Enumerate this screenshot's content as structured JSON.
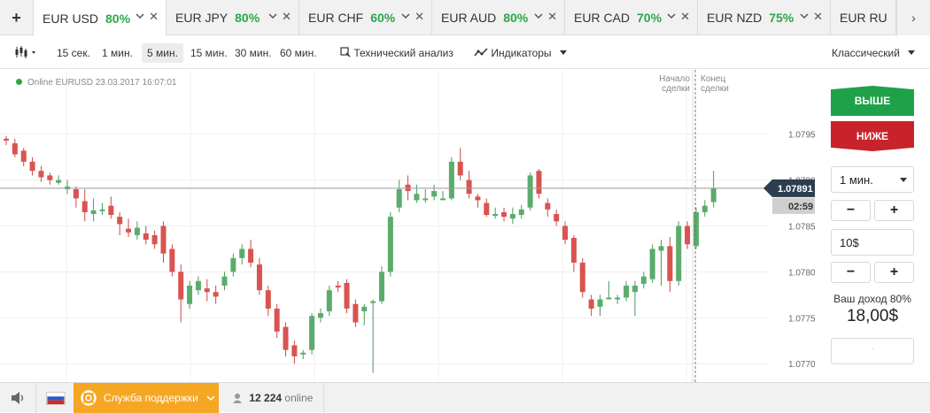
{
  "tabs": {
    "add_label": "+",
    "items": [
      {
        "pair": "EUR USD",
        "pct": "80%"
      },
      {
        "pair": "EUR JPY",
        "pct": "80%"
      },
      {
        "pair": "EUR CHF",
        "pct": "60%"
      },
      {
        "pair": "EUR AUD",
        "pct": "80%"
      },
      {
        "pair": "EUR CAD",
        "pct": "70%"
      },
      {
        "pair": "EUR NZD",
        "pct": "75%"
      },
      {
        "pair": "EUR RU"
      }
    ],
    "close_glyph": "✕",
    "scroll_right": "›",
    "colors": {
      "pct": "#2aa84a"
    }
  },
  "toolbar": {
    "chart_type_icon": "candlestick-icon",
    "intervals": [
      "15 сек.",
      "1 мин.",
      "5 мин.",
      "15 мин.",
      "30 мин.",
      "60 мин."
    ],
    "selected_interval": "5 мин.",
    "tech_analysis": "Технический анализ",
    "indicators": "Индикаторы",
    "view_mode": "Классический"
  },
  "chart": {
    "status": "Online EURUSD 23.03.2017 16:07:01",
    "start_label": [
      "Начало",
      "сделки"
    ],
    "end_label": [
      "Конец",
      "сделки"
    ],
    "y_ticks": [
      "1.07950",
      "1.07900",
      "1.07850",
      "1.07800",
      "1.07750",
      "1.07700"
    ],
    "current_price": "1.07891",
    "countdown": "02:59",
    "colors": {
      "up": "#5aac6c",
      "down": "#d9534f",
      "current_tag": "#2c3e50"
    }
  },
  "chart_data": {
    "type": "candlestick",
    "symbol": "EURUSD",
    "ylim": [
      1.0768,
      1.0802
    ],
    "candles": [
      [
        1.07945,
        1.07943,
        1.07948,
        1.07938
      ],
      [
        1.0794,
        1.07928,
        1.07945,
        1.07925
      ],
      [
        1.07932,
        1.0792,
        1.07935,
        1.07915
      ],
      [
        1.0792,
        1.0791,
        1.07925,
        1.07905
      ],
      [
        1.0791,
        1.07903,
        1.07915,
        1.07898
      ],
      [
        1.07905,
        1.079,
        1.07908,
        1.07895
      ],
      [
        1.07897,
        1.079,
        1.07905,
        1.07895
      ],
      [
        1.0789,
        1.07893,
        1.079,
        1.07885
      ],
      [
        1.0789,
        1.0788,
        1.07893,
        1.0787
      ],
      [
        1.07877,
        1.07865,
        1.0789,
        1.07855
      ],
      [
        1.07863,
        1.07867,
        1.0788,
        1.07855
      ],
      [
        1.07868,
        1.07868,
        1.07875,
        1.07862
      ],
      [
        1.07872,
        1.07862,
        1.07882,
        1.07858
      ],
      [
        1.0786,
        1.07852,
        1.07865,
        1.0784
      ],
      [
        1.07847,
        1.07843,
        1.07858,
        1.07838
      ],
      [
        1.0784,
        1.07848,
        1.07855,
        1.07835
      ],
      [
        1.07842,
        1.07835,
        1.0785,
        1.0783
      ],
      [
        1.0784,
        1.0783,
        1.07845,
        1.07825
      ],
      [
        1.0785,
        1.0782,
        1.07855,
        1.0781
      ],
      [
        1.07825,
        1.078,
        1.0783,
        1.07795
      ],
      [
        1.078,
        1.0777,
        1.07808,
        1.07745
      ],
      [
        1.07765,
        1.07785,
        1.0779,
        1.0776
      ],
      [
        1.0778,
        1.0779,
        1.07795,
        1.07775
      ],
      [
        1.07782,
        1.07778,
        1.07792,
        1.07768
      ],
      [
        1.07778,
        1.07773,
        1.07785,
        1.07765
      ],
      [
        1.07785,
        1.07795,
        1.078,
        1.0778
      ],
      [
        1.078,
        1.07815,
        1.0782,
        1.07795
      ],
      [
        1.07815,
        1.07825,
        1.0783,
        1.07808
      ],
      [
        1.07825,
        1.0781,
        1.07835,
        1.07805
      ],
      [
        1.07808,
        1.0778,
        1.07815,
        1.07775
      ],
      [
        1.0778,
        1.0776,
        1.07785,
        1.07752
      ],
      [
        1.0776,
        1.07735,
        1.07765,
        1.07728
      ],
      [
        1.0774,
        1.07715,
        1.07745,
        1.07708
      ],
      [
        1.0772,
        1.07708,
        1.07725,
        1.077
      ],
      [
        1.0771,
        1.07712,
        1.07715,
        1.07705
      ],
      [
        1.07715,
        1.07752,
        1.07755,
        1.0771
      ],
      [
        1.0775,
        1.07755,
        1.0776,
        1.07745
      ],
      [
        1.07757,
        1.0778,
        1.07785,
        1.07752
      ],
      [
        1.07785,
        1.07783,
        1.0779,
        1.07778
      ],
      [
        1.07788,
        1.0776,
        1.07792,
        1.07755
      ],
      [
        1.07765,
        1.07745,
        1.0777,
        1.0774
      ],
      [
        1.07757,
        1.07762,
        1.07765,
        1.07742
      ],
      [
        1.07768,
        1.07768,
        1.0777,
        1.0769
      ],
      [
        1.07768,
        1.078,
        1.07806,
        1.07765
      ],
      [
        1.078,
        1.0786,
        1.07865,
        1.07795
      ],
      [
        1.0787,
        1.0789,
        1.079,
        1.07865
      ],
      [
        1.07895,
        1.07888,
        1.07905,
        1.07878
      ],
      [
        1.07878,
        1.07885,
        1.07895,
        1.07875
      ],
      [
        1.0788,
        1.0788,
        1.0789,
        1.07875
      ],
      [
        1.07882,
        1.07888,
        1.07895,
        1.07878
      ],
      [
        1.0788,
        1.0788,
        1.07888,
        1.07878
      ],
      [
        1.0788,
        1.0792,
        1.07925,
        1.07878
      ],
      [
        1.0792,
        1.07905,
        1.07935,
        1.079
      ],
      [
        1.079,
        1.07885,
        1.0791,
        1.0788
      ],
      [
        1.07882,
        1.07878,
        1.07885,
        1.0787
      ],
      [
        1.07875,
        1.07862,
        1.0788,
        1.0786
      ],
      [
        1.07862,
        1.07863,
        1.0787,
        1.07858
      ],
      [
        1.07865,
        1.0786,
        1.0787,
        1.07855
      ],
      [
        1.07858,
        1.07863,
        1.0787,
        1.07852
      ],
      [
        1.07862,
        1.07868,
        1.07873,
        1.07858
      ],
      [
        1.0787,
        1.07905,
        1.07908,
        1.07867
      ],
      [
        1.0791,
        1.07885,
        1.07912,
        1.0788
      ],
      [
        1.07875,
        1.07868,
        1.0788,
        1.0786
      ],
      [
        1.07863,
        1.07855,
        1.07868,
        1.0785
      ],
      [
        1.0785,
        1.07835,
        1.07855,
        1.0783
      ],
      [
        1.07837,
        1.0781,
        1.0784,
        1.078
      ],
      [
        1.0781,
        1.07778,
        1.07815,
        1.07772
      ],
      [
        1.0777,
        1.0776,
        1.07775,
        1.07752
      ],
      [
        1.07762,
        1.0777,
        1.07775,
        1.07752
      ],
      [
        1.07772,
        1.07772,
        1.0779,
        1.0777
      ],
      [
        1.0777,
        1.07772,
        1.07775,
        1.07765
      ],
      [
        1.07772,
        1.07785,
        1.0779,
        1.07768
      ],
      [
        1.07778,
        1.07785,
        1.0779,
        1.07752
      ],
      [
        1.07787,
        1.07795,
        1.078,
        1.07782
      ],
      [
        1.07792,
        1.07825,
        1.0783,
        1.07788
      ],
      [
        1.07823,
        1.07828,
        1.07835,
        1.07785
      ],
      [
        1.07828,
        1.0779,
        1.07838,
        1.07778
      ],
      [
        1.0779,
        1.0785,
        1.07855,
        1.07785
      ],
      [
        1.0785,
        1.0783,
        1.07855,
        1.07825
      ],
      [
        1.07828,
        1.07865,
        1.0787,
        1.07825
      ],
      [
        1.07865,
        1.07872,
        1.07878,
        1.0786
      ],
      [
        1.07876,
        1.07891,
        1.0791,
        1.0787
      ]
    ]
  },
  "panel": {
    "up_label": "ВЫШЕ",
    "down_label": "НИЖЕ",
    "expiry": "1 мин.",
    "minus": "−",
    "plus": "+",
    "amount": "10$",
    "payout_label": "Ваш доход 80%",
    "payout_value": "18,00$",
    "colors": {
      "up": "#1fa14a",
      "down": "#c8232a"
    }
  },
  "footer": {
    "support_label": "Служба поддержки",
    "online_count": "12 224",
    "online_label": "online",
    "colors": {
      "support": "#f5a623"
    }
  }
}
